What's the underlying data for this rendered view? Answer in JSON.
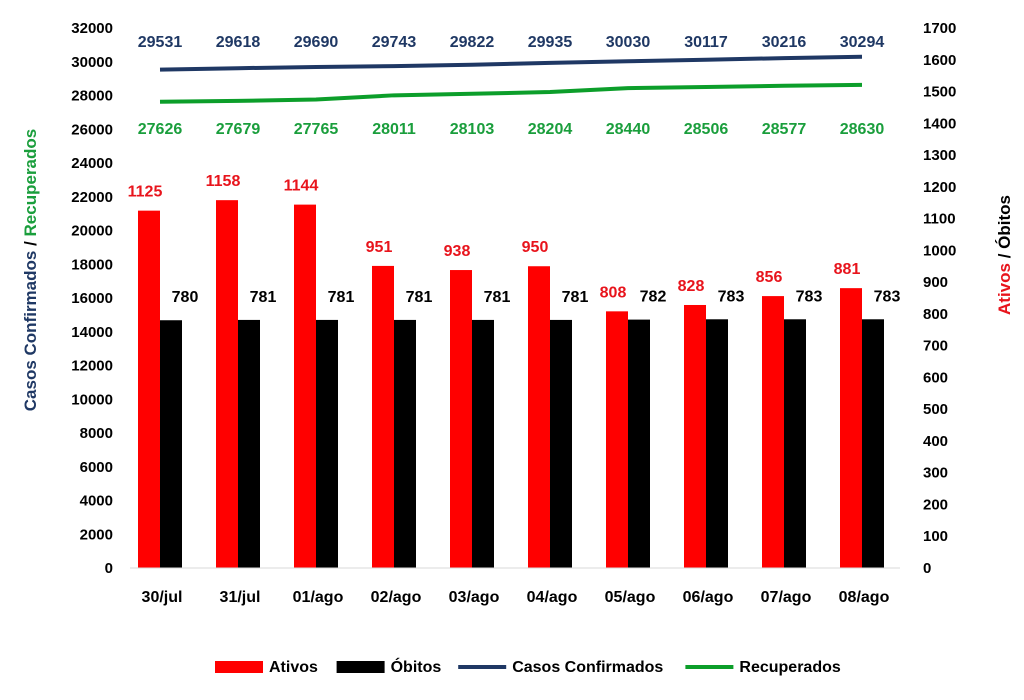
{
  "chart_data": {
    "type": "bar",
    "categories": [
      "30/jul",
      "31/jul",
      "01/ago",
      "02/ago",
      "03/ago",
      "04/ago",
      "05/ago",
      "06/ago",
      "07/ago",
      "08/ago"
    ],
    "series": [
      {
        "name": "Ativos",
        "type": "bar",
        "axis": "right",
        "color": "#ff0000",
        "label_color": "#e8141c",
        "values": [
          1125,
          1158,
          1144,
          951,
          938,
          950,
          808,
          828,
          856,
          881
        ]
      },
      {
        "name": "Óbitos",
        "type": "bar",
        "axis": "right",
        "color": "#000000",
        "label_color": "#000000",
        "values": [
          780,
          781,
          781,
          781,
          781,
          781,
          782,
          783,
          783,
          783
        ]
      },
      {
        "name": "Casos Confirmados",
        "type": "line",
        "axis": "left",
        "color": "#1f3864",
        "label_color": "#1f3864",
        "values": [
          29531,
          29618,
          29690,
          29743,
          29822,
          29935,
          30030,
          30117,
          30216,
          30294
        ]
      },
      {
        "name": "Recuperados",
        "type": "line",
        "axis": "left",
        "color": "#0c9e2a",
        "label_color": "#1a9e3c",
        "values": [
          27626,
          27679,
          27765,
          28011,
          28103,
          28204,
          28440,
          28506,
          28577,
          28630
        ]
      }
    ],
    "ylabel_left": {
      "part1": "Casos Confirmados",
      "sep": " / ",
      "part2": "Recuperados",
      "color1": "#1f3864",
      "color2": "#1a9e3c"
    },
    "ylabel_right": {
      "part1": "Ativos",
      "sep": " / ",
      "part2": "Óbitos",
      "color1": "#e8141c",
      "color2": "#000000"
    },
    "ylim_left": [
      0,
      32000
    ],
    "yticks_left": [
      0,
      2000,
      4000,
      6000,
      8000,
      10000,
      12000,
      14000,
      16000,
      18000,
      20000,
      22000,
      24000,
      26000,
      28000,
      30000,
      32000
    ],
    "ylim_right": [
      0,
      1700
    ],
    "yticks_right": [
      0,
      100,
      200,
      300,
      400,
      500,
      600,
      700,
      800,
      900,
      1000,
      1100,
      1200,
      1300,
      1400,
      1500,
      1600,
      1700
    ],
    "grid": false,
    "legend_position": "bottom"
  }
}
